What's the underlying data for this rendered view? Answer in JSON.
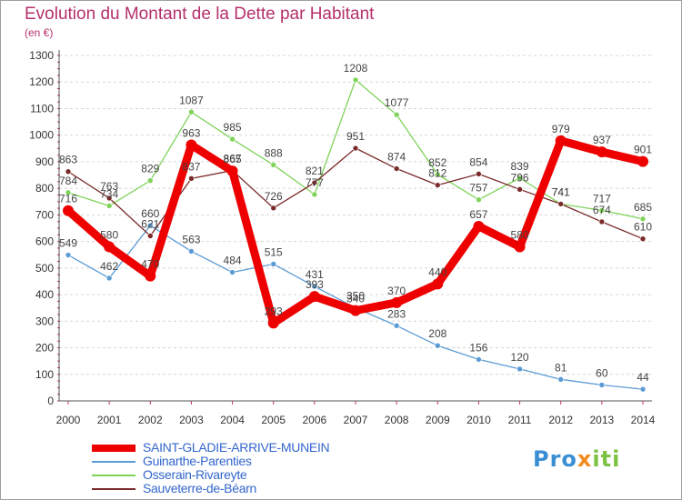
{
  "chart_data": {
    "type": "line",
    "title": "Evolution du Montant de la Dette par Habitant",
    "subtitle": "(en €)",
    "xlabel": "",
    "ylabel": "",
    "x": [
      "2000",
      "2001",
      "2002",
      "2003",
      "2004",
      "2005",
      "2006",
      "2007",
      "2008",
      "2009",
      "2010",
      "2011",
      "2012",
      "2013",
      "2014"
    ],
    "ylim": [
      0,
      1300
    ],
    "yticks": [
      "0",
      "100",
      "200",
      "300",
      "400",
      "500",
      "600",
      "700",
      "800",
      "900",
      "1000",
      "1100",
      "1200",
      "1300"
    ],
    "grid": "horizontal-dashed",
    "legend_position": "bottom-left",
    "series": [
      {
        "name": "SAINT-GLADIE-ARRIVE-MUNEIN",
        "color": "#ee0000",
        "values": [
          716,
          580,
          470,
          963,
          865,
          293,
          393,
          340,
          370,
          440,
          657,
          580,
          979,
          937,
          901
        ]
      },
      {
        "name": "Guinarthe-Parenties",
        "color": "#5b9bd5",
        "values": [
          549,
          462,
          660,
          563,
          484,
          515,
          431,
          350,
          283,
          208,
          156,
          120,
          81,
          60,
          44
        ]
      },
      {
        "name": "Osserain-Rivareyte",
        "color": "#7fd35a",
        "values": [
          784,
          734,
          829,
          1087,
          985,
          888,
          777,
          1208,
          1077,
          852,
          757,
          839,
          741,
          717,
          685
        ]
      },
      {
        "name": "Sauveterre-de-Béarn",
        "color": "#7a2a2a",
        "values": [
          863,
          763,
          621,
          837,
          867,
          726,
          821,
          951,
          874,
          812,
          854,
          796,
          741,
          674,
          610
        ]
      }
    ]
  },
  "brand": {
    "p1": "Pro",
    "p2": "x",
    "p3": "iti"
  }
}
